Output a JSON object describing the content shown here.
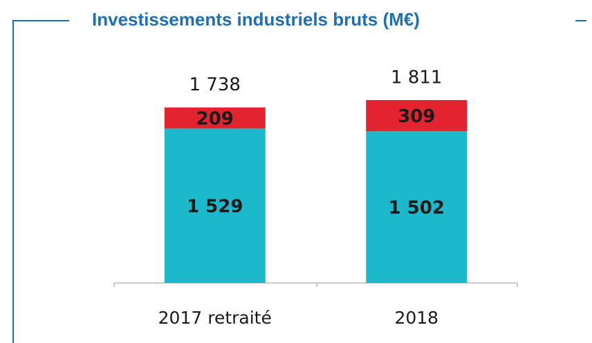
{
  "chart_data": {
    "type": "stacked_bar",
    "title": "Investissements industriels bruts (M€)",
    "categories": [
      "2017 retraité",
      "2018"
    ],
    "series": [
      {
        "color": "#1bb9cb",
        "values": [
          1529,
          1502
        ],
        "value_labels": [
          "1 529",
          "1 502"
        ]
      },
      {
        "color": "#e3232f",
        "values": [
          209,
          309
        ],
        "value_labels": [
          "209",
          "309"
        ]
      }
    ],
    "totals": [
      1738,
      1811
    ],
    "total_labels": [
      "1 738",
      "1 811"
    ]
  }
}
